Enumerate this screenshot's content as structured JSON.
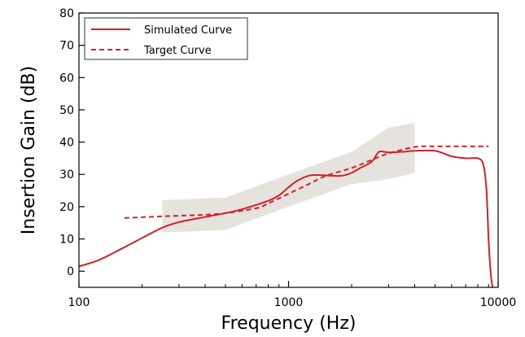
{
  "chart_data": {
    "type": "line",
    "xscale": "log",
    "xlim": [
      100,
      10000
    ],
    "ylim": [
      -5,
      80
    ],
    "xlabel": "Frequency (Hz)",
    "ylabel": "Insertion Gain (dB)",
    "x_ticks": [
      100,
      1000,
      10000
    ],
    "x_tick_labels": [
      "100",
      "1000",
      "10000"
    ],
    "y_ticks": [
      0,
      10,
      20,
      30,
      40,
      50,
      60,
      70,
      80
    ],
    "y_tick_labels": [
      "0",
      "10",
      "20",
      "30",
      "40",
      "50",
      "60",
      "70",
      "80"
    ],
    "grid": false,
    "legend": {
      "position": "top-left"
    },
    "colors": {
      "series": "#d0202e",
      "band": "#e6e2dd",
      "axes": "#000000"
    },
    "series": [
      {
        "name": "Simulated Curve",
        "style": "solid",
        "x": [
          100,
          125,
          160,
          200,
          250,
          300,
          400,
          500,
          600,
          800,
          900,
          1000,
          1100,
          1250,
          1400,
          1600,
          1800,
          2000,
          2200,
          2500,
          2700,
          3000,
          3500,
          4000,
          5000,
          6000,
          7000,
          8000,
          8500,
          8800,
          9000,
          9200,
          9400,
          9500
        ],
        "y": [
          1.5,
          3.5,
          7.0,
          10.3,
          13.5,
          15.2,
          16.8,
          18.0,
          19.2,
          21.8,
          23.5,
          26.0,
          28.0,
          29.6,
          29.8,
          29.6,
          29.6,
          30.5,
          32.0,
          34.0,
          37.0,
          36.8,
          37.0,
          37.3,
          37.3,
          35.6,
          35.0,
          35.0,
          33.0,
          25.0,
          10.0,
          0.0,
          -5.0,
          -5.0
        ]
      },
      {
        "name": "Target Curve",
        "style": "dashed",
        "x": [
          165,
          250,
          400,
          500,
          700,
          800,
          1000,
          1250,
          1500,
          2000,
          2500,
          3000,
          4000,
          5000,
          6000,
          8000,
          9000
        ],
        "y": [
          16.5,
          17.0,
          17.5,
          18.0,
          19.5,
          21.0,
          24.0,
          27.0,
          29.5,
          32.0,
          34.5,
          36.5,
          38.5,
          38.7,
          38.7,
          38.7,
          38.7
        ]
      }
    ],
    "tolerance_band": {
      "x": [
        250,
        500,
        1000,
        2000,
        3000,
        4000
      ],
      "upper": [
        22,
        22.8,
        30,
        37,
        44.5,
        46
      ],
      "lower": [
        12,
        12.8,
        20,
        27,
        28.5,
        30.5
      ]
    }
  }
}
